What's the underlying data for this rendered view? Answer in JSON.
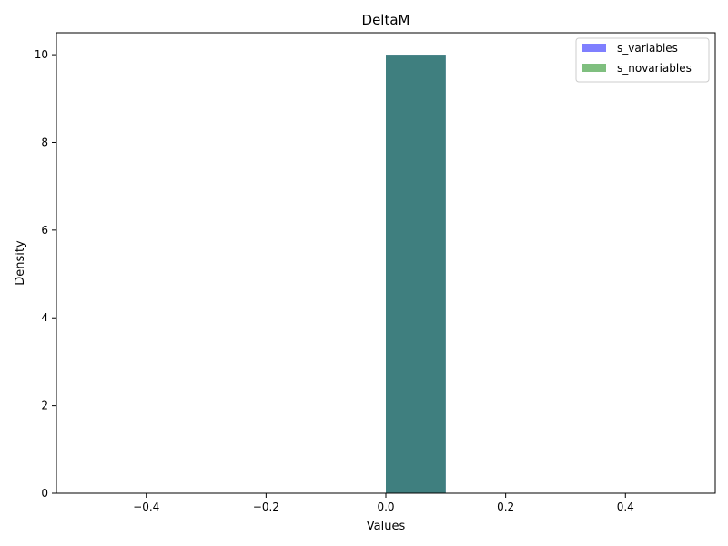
{
  "chart_data": {
    "type": "bar",
    "title": "DeltaM",
    "xlabel": "Values",
    "ylabel": "Density",
    "xlim": [
      -0.55,
      0.55
    ],
    "ylim": [
      0,
      10.5
    ],
    "xticks": [
      -0.4,
      -0.2,
      0.0,
      0.2,
      0.4
    ],
    "xtick_labels": [
      "−0.4",
      "−0.2",
      "0.0",
      "0.2",
      "0.4"
    ],
    "yticks": [
      0,
      2,
      4,
      6,
      8,
      10
    ],
    "ytick_labels": [
      "0",
      "2",
      "4",
      "6",
      "8",
      "10"
    ],
    "grid": false,
    "legend_position": "top-right",
    "series": [
      {
        "name": "s_variables",
        "color": "#0000ff",
        "opacity": 0.5,
        "bins": [
          {
            "x0": 0.0,
            "x1": 0.1,
            "value": 10
          }
        ]
      },
      {
        "name": "s_novariables",
        "color": "#008000",
        "opacity": 0.5,
        "bins": [
          {
            "x0": 0.0,
            "x1": 0.1,
            "value": 10
          }
        ]
      }
    ]
  }
}
